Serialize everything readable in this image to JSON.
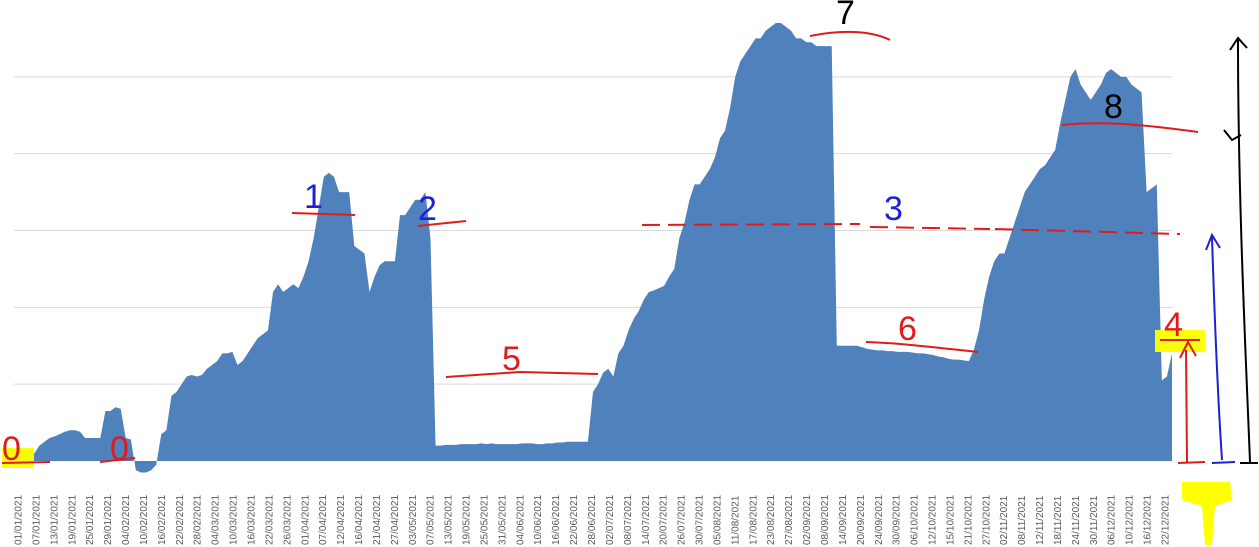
{
  "chart_data": {
    "type": "area",
    "title": "",
    "xlabel": "",
    "ylabel": "",
    "ylim": [
      0,
      60
    ],
    "grid": true,
    "legend": "none",
    "x_tick_labels": [
      "01/01/2021",
      "07/01/2021",
      "13/01/2021",
      "19/01/2021",
      "25/01/2021",
      "29/01/2021",
      "04/02/2021",
      "10/02/2021",
      "16/02/2021",
      "22/02/2021",
      "28/02/2021",
      "04/03/2021",
      "10/03/2021",
      "16/03/2021",
      "22/03/2021",
      "26/03/2021",
      "01/04/2021",
      "07/04/2021",
      "12/04/2021",
      "16/04/2021",
      "21/04/2021",
      "27/04/2021",
      "03/05/2021",
      "07/05/2021",
      "13/05/2021",
      "19/05/2021",
      "25/05/2021",
      "31/05/2021",
      "04/06/2021",
      "10/06/2021",
      "16/06/2021",
      "22/06/2021",
      "28/06/2021",
      "02/07/2021",
      "08/07/2021",
      "14/07/2021",
      "20/07/2021",
      "26/07/2021",
      "30/07/2021",
      "05/08/2021",
      "11/08/2021",
      "17/08/2021",
      "23/08/2021",
      "27/08/2021",
      "02/09/2021",
      "08/09/2021",
      "14/09/2021",
      "20/09/2021",
      "24/09/2021",
      "30/09/2021",
      "06/10/2021",
      "12/10/2021",
      "15/10/2021",
      "21/10/2021",
      "27/10/2021",
      "02/11/2021",
      "08/11/2021",
      "12/11/2021",
      "18/11/2021",
      "24/11/2021",
      "30/11/2021",
      "06/12/2021",
      "10/12/2021",
      "16/12/2021",
      "22/12/2021"
    ],
    "series": [
      {
        "name": "",
        "color": "#4f81bd",
        "values": [
          0.5,
          0.8,
          1.2,
          1.5,
          1.0,
          2.0,
          2.5,
          3.0,
          3.2,
          3.5,
          3.8,
          4.0,
          4.0,
          3.8,
          3.0,
          3.0,
          3.0,
          3.0,
          6.5,
          6.5,
          7.0,
          6.8,
          3.0,
          2.8,
          -1.2,
          -1.5,
          -1.5,
          -1.2,
          -0.5,
          3.5,
          4.0,
          8.5,
          9.0,
          10.0,
          11.0,
          11.2,
          11.0,
          11.2,
          12.0,
          12.5,
          13.0,
          14.0,
          14.0,
          14.2,
          12.5,
          13.0,
          14.0,
          15.0,
          16.0,
          16.5,
          17.0,
          22.0,
          23.0,
          22.0,
          22.5,
          23.0,
          22.5,
          24.0,
          26.0,
          29.0,
          33.0,
          37.0,
          37.5,
          37.0,
          35.0,
          35.0,
          35.0,
          28.0,
          27.5,
          27.0,
          22.0,
          24.0,
          25.5,
          26.0,
          26.0,
          26.0,
          32.0,
          32.0,
          33.0,
          34.0,
          34.0,
          35.0,
          29.0,
          2.0,
          2.0,
          2.1,
          2.1,
          2.1,
          2.2,
          2.2,
          2.2,
          2.2,
          2.3,
          2.2,
          2.3,
          2.2,
          2.2,
          2.2,
          2.2,
          2.2,
          2.3,
          2.3,
          2.3,
          2.2,
          2.2,
          2.3,
          2.3,
          2.4,
          2.4,
          2.5,
          2.5,
          2.5,
          2.5,
          2.5,
          9.0,
          10.0,
          11.5,
          12.0,
          11.0,
          14.0,
          15.0,
          17.0,
          18.5,
          19.5,
          21.0,
          22.0,
          22.2,
          22.5,
          22.8,
          24.0,
          25.0,
          29.0,
          31.0,
          34.0,
          36.0,
          36.0,
          37.0,
          38.0,
          39.5,
          42.0,
          43.0,
          46.0,
          50.0,
          52.0,
          53.0,
          54.0,
          55.0,
          55.0,
          56.0,
          56.5,
          57.0,
          57.0,
          56.5,
          56.0,
          55.0,
          55.0,
          54.5,
          54.5,
          54.0,
          54.0,
          54.0,
          54.0,
          15.0,
          15.0,
          15.0,
          15.0,
          15.0,
          14.8,
          14.6,
          14.5,
          14.4,
          14.4,
          14.3,
          14.3,
          14.2,
          14.2,
          14.2,
          14.1,
          14.0,
          14.0,
          13.9,
          13.8,
          13.6,
          13.5,
          13.3,
          13.2,
          13.2,
          13.1,
          13.0,
          14.5,
          17.0,
          21.0,
          24.0,
          26.0,
          27.0,
          27.0,
          29.0,
          31.0,
          33.0,
          35.0,
          36.0,
          37.0,
          38.0,
          38.5,
          39.5,
          40.5,
          44.0,
          47.0,
          50.0,
          51.0,
          49.0,
          48.0,
          47.0,
          48.0,
          49.0,
          50.5,
          51.0,
          50.5,
          50.0,
          50.0,
          49.0,
          48.5,
          48.0,
          35.0,
          35.5,
          36.0,
          10.5,
          11.0,
          14.0
        ]
      }
    ],
    "annotations": [
      {
        "text": "1",
        "color": "#1f1fd6"
      },
      {
        "text": "2",
        "color": "#1f1fd6"
      },
      {
        "text": "3",
        "color": "#1f1fd6"
      },
      {
        "text": "4",
        "color": "#e01b1b"
      },
      {
        "text": "5",
        "color": "#e01b1b"
      },
      {
        "text": "6",
        "color": "#e01b1b"
      },
      {
        "text": "7",
        "color": "#000000"
      },
      {
        "text": "8",
        "color": "#000000"
      },
      {
        "text": "0",
        "color": "#e01b1b"
      },
      {
        "text": "0",
        "color": "#e01b1b"
      }
    ],
    "annotation_colors": {
      "red": "#e01b1b",
      "blue": "#1f1fd6",
      "black": "#000000",
      "highlight": "#ffff00",
      "green": "#3b8e2a"
    }
  }
}
